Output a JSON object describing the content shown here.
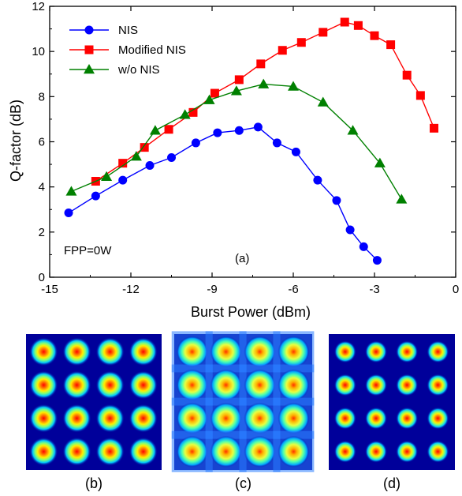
{
  "chart_data": {
    "type": "line",
    "title": "",
    "xlabel": "Burst Power (dBm)",
    "ylabel": "Q-factor (dB)",
    "xlim": [
      -15,
      0
    ],
    "ylim": [
      0,
      12
    ],
    "xticks": [
      -15,
      -12,
      -9,
      -6,
      -3,
      0
    ],
    "yticks": [
      0,
      2,
      4,
      6,
      8,
      10,
      12
    ],
    "grid": false,
    "legend_position": "top-left",
    "annotations": [
      "FPP=0W",
      "(a)"
    ],
    "series": [
      {
        "name": "NIS",
        "color": "#0000ff",
        "marker": "circle",
        "x": [
          -14.3,
          -13.3,
          -12.3,
          -11.3,
          -10.5,
          -9.6,
          -8.8,
          -8.0,
          -7.3,
          -6.6,
          -5.9,
          -5.1,
          -4.4,
          -3.9,
          -3.4,
          -2.9
        ],
        "y": [
          2.85,
          3.6,
          4.3,
          4.95,
          5.3,
          5.95,
          6.4,
          6.5,
          6.65,
          5.95,
          5.55,
          4.3,
          3.4,
          2.1,
          1.35,
          0.75
        ]
      },
      {
        "name": "Modified NIS",
        "color": "#ff0000",
        "marker": "square",
        "x": [
          -13.3,
          -12.3,
          -11.5,
          -10.6,
          -9.7,
          -8.9,
          -8.0,
          -7.2,
          -6.4,
          -5.7,
          -4.9,
          -4.1,
          -3.6,
          -3.0,
          -2.4,
          -1.8,
          -1.3,
          -0.8
        ],
        "y": [
          4.25,
          5.05,
          5.75,
          6.55,
          7.3,
          8.15,
          8.75,
          9.45,
          10.05,
          10.4,
          10.85,
          11.3,
          11.15,
          10.7,
          10.3,
          8.95,
          8.05,
          6.6
        ]
      },
      {
        "name": "w/o NIS",
        "color": "#008000",
        "marker": "triangle",
        "x": [
          -14.2,
          -12.9,
          -11.8,
          -11.1,
          -10.0,
          -9.1,
          -8.1,
          -7.1,
          -6.0,
          -4.9,
          -3.8,
          -2.8,
          -2.0
        ],
        "y": [
          3.8,
          4.45,
          5.35,
          6.5,
          7.2,
          7.85,
          8.25,
          8.55,
          8.45,
          7.75,
          6.5,
          5.05,
          3.45
        ]
      }
    ]
  },
  "panels": [
    {
      "label": "(b)",
      "variant": "clear"
    },
    {
      "label": "(c)",
      "variant": "noisy"
    },
    {
      "label": "(d)",
      "variant": "tight"
    }
  ]
}
